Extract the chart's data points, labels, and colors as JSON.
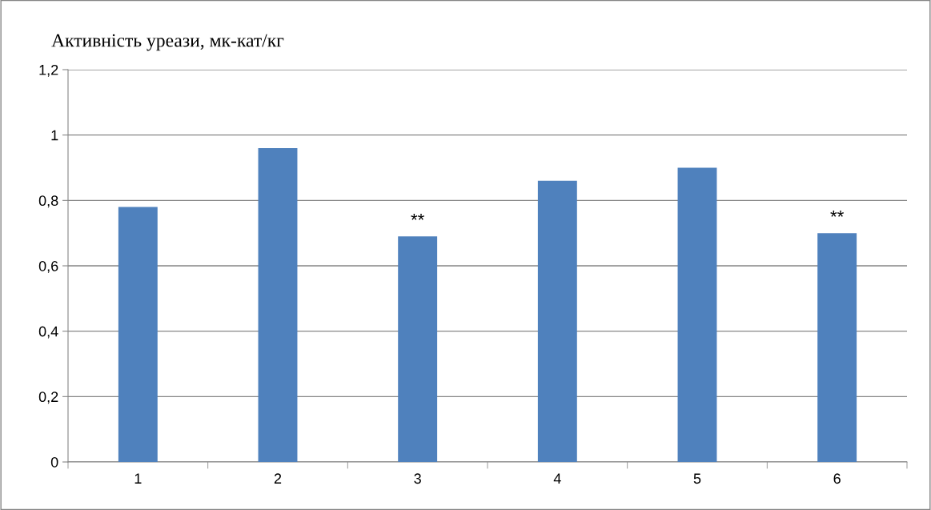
{
  "chart_data": {
    "type": "bar",
    "ylabel": "Активність уреази, мк-кат/кг",
    "categories": [
      "1",
      "2",
      "3",
      "4",
      "5",
      "6"
    ],
    "values": [
      0.78,
      0.96,
      0.69,
      0.86,
      0.9,
      0.7
    ],
    "color": "#4f81bd",
    "ylim": [
      0,
      1.2
    ],
    "yticks": [
      {
        "value": 0,
        "label": "0"
      },
      {
        "value": 0.2,
        "label": "0,2"
      },
      {
        "value": 0.4,
        "label": "0,4"
      },
      {
        "value": 0.6,
        "label": "0,6"
      },
      {
        "value": 0.8,
        "label": "0,8"
      },
      {
        "value": 1,
        "label": "1"
      },
      {
        "value": 1.2,
        "label": "1,2"
      }
    ],
    "value_labels": [
      null,
      null,
      "**",
      null,
      null,
      "**"
    ],
    "grid": "y"
  }
}
